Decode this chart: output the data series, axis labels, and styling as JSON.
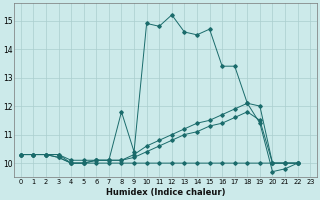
{
  "xlabel": "Humidex (Indice chaleur)",
  "bg_color": "#cceaea",
  "grid_color": "#aacece",
  "line_color": "#1a6b6b",
  "xlim": [
    -0.5,
    23.5
  ],
  "ylim": [
    9.5,
    15.6
  ],
  "xtick_labels": [
    "0",
    "1",
    "2",
    "3",
    "4",
    "5",
    "6",
    "7",
    "8",
    "9",
    "10",
    "11",
    "12",
    "13",
    "14",
    "15",
    "16",
    "17",
    "18",
    "19",
    "20",
    "21",
    "22",
    "23"
  ],
  "xtick_vals": [
    0,
    1,
    2,
    3,
    4,
    5,
    6,
    7,
    8,
    9,
    10,
    11,
    12,
    13,
    14,
    15,
    16,
    17,
    18,
    19,
    20,
    21,
    22,
    23
  ],
  "ytick_vals": [
    10,
    11,
    12,
    13,
    14,
    15
  ],
  "series": [
    {
      "x": [
        0,
        1,
        2,
        3,
        4,
        5,
        6,
        7,
        8,
        9,
        10,
        11,
        12,
        13,
        14,
        15,
        16,
        17,
        18,
        19,
        20,
        21,
        22
      ],
      "y": [
        10.3,
        10.3,
        10.3,
        10.3,
        10.1,
        10.1,
        10.1,
        10.1,
        11.8,
        10.4,
        14.9,
        14.8,
        15.2,
        14.6,
        14.5,
        14.7,
        13.4,
        13.4,
        12.1,
        11.4,
        9.7,
        9.8,
        10.0
      ]
    },
    {
      "x": [
        0,
        1,
        2,
        3,
        4,
        5,
        6,
        7,
        8,
        9,
        10,
        11,
        12,
        13,
        14,
        15,
        16,
        17,
        18,
        19,
        20,
        21,
        22
      ],
      "y": [
        10.3,
        10.3,
        10.3,
        10.2,
        10.0,
        10.0,
        10.1,
        10.1,
        10.1,
        10.3,
        10.6,
        10.8,
        11.0,
        11.2,
        11.4,
        11.5,
        11.7,
        11.9,
        12.1,
        12.0,
        10.0,
        10.0,
        10.0
      ]
    },
    {
      "x": [
        0,
        1,
        2,
        3,
        4,
        5,
        6,
        7,
        8,
        9,
        10,
        11,
        12,
        13,
        14,
        15,
        16,
        17,
        18,
        19,
        20,
        21,
        22
      ],
      "y": [
        10.3,
        10.3,
        10.3,
        10.2,
        10.0,
        10.0,
        10.1,
        10.1,
        10.1,
        10.2,
        10.4,
        10.6,
        10.8,
        11.0,
        11.1,
        11.3,
        11.4,
        11.6,
        11.8,
        11.5,
        10.0,
        10.0,
        10.0
      ]
    },
    {
      "x": [
        0,
        1,
        2,
        3,
        4,
        5,
        6,
        7,
        8,
        9,
        10,
        11,
        12,
        13,
        14,
        15,
        16,
        17,
        18,
        19,
        20,
        21,
        22
      ],
      "y": [
        10.3,
        10.3,
        10.3,
        10.3,
        10.0,
        10.0,
        10.0,
        10.0,
        10.0,
        10.0,
        10.0,
        10.0,
        10.0,
        10.0,
        10.0,
        10.0,
        10.0,
        10.0,
        10.0,
        10.0,
        10.0,
        10.0,
        10.0
      ]
    }
  ]
}
